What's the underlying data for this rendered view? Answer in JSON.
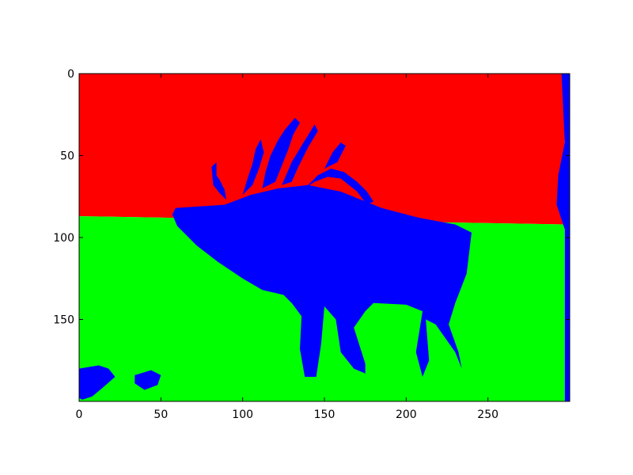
{
  "chart_data": {
    "type": "heatmap",
    "title": "",
    "xlabel": "",
    "ylabel": "",
    "image_width": 300,
    "image_height": 200,
    "xlim": [
      0,
      300
    ],
    "ylim": [
      200,
      0
    ],
    "x_ticks": [
      0,
      50,
      100,
      150,
      200,
      250
    ],
    "y_ticks": [
      0,
      50,
      100,
      150
    ],
    "grid": false,
    "legend": "none",
    "classes": [
      {
        "id": 0,
        "color": "#ff0000"
      },
      {
        "id": 1,
        "color": "#00ff00"
      },
      {
        "id": 2,
        "color": "#0000ff"
      }
    ],
    "regions": [
      {
        "class": 0,
        "polygon": [
          [
            0,
            0
          ],
          [
            297,
            0
          ],
          [
            297,
            92
          ],
          [
            0,
            87
          ]
        ]
      },
      {
        "class": 1,
        "polygon": [
          [
            0,
            87
          ],
          [
            297,
            92
          ],
          [
            297,
            200
          ],
          [
            0,
            200
          ]
        ]
      },
      {
        "class": 2,
        "polygon": [
          [
            59,
            82
          ],
          [
            89,
            80
          ],
          [
            105,
            74
          ],
          [
            122,
            70
          ],
          [
            140,
            68
          ],
          [
            160,
            72
          ],
          [
            185,
            82
          ],
          [
            208,
            88
          ],
          [
            230,
            92
          ],
          [
            240,
            97
          ],
          [
            237,
            122
          ],
          [
            230,
            140
          ],
          [
            226,
            153
          ],
          [
            232,
            170
          ],
          [
            234,
            180
          ],
          [
            230,
            170
          ],
          [
            218,
            153
          ],
          [
            212,
            150
          ],
          [
            214,
            175
          ],
          [
            210,
            185
          ],
          [
            206,
            170
          ],
          [
            210,
            145
          ],
          [
            200,
            141
          ],
          [
            180,
            140
          ],
          [
            175,
            145
          ],
          [
            168,
            155
          ],
          [
            175,
            177
          ],
          [
            175,
            183
          ],
          [
            168,
            180
          ],
          [
            160,
            170
          ],
          [
            157,
            150
          ],
          [
            150,
            142
          ],
          [
            148,
            165
          ],
          [
            145,
            185
          ],
          [
            138,
            185
          ],
          [
            135,
            168
          ],
          [
            136,
            148
          ],
          [
            130,
            140
          ],
          [
            125,
            135
          ],
          [
            112,
            132
          ],
          [
            100,
            125
          ],
          [
            85,
            115
          ],
          [
            72,
            105
          ],
          [
            60,
            93
          ],
          [
            57,
            86
          ]
        ]
      },
      {
        "class": 2,
        "polygon": [
          [
            90,
            77
          ],
          [
            86,
            73
          ],
          [
            82,
            68
          ],
          [
            81,
            57
          ],
          [
            84,
            54
          ],
          [
            84,
            62
          ],
          [
            86,
            65
          ],
          [
            89,
            71
          ]
        ]
      },
      {
        "class": 2,
        "polygon": [
          [
            100,
            74
          ],
          [
            103,
            64
          ],
          [
            106,
            55
          ],
          [
            108,
            46
          ],
          [
            111,
            40
          ],
          [
            113,
            48
          ],
          [
            110,
            58
          ],
          [
            106,
            68
          ]
        ]
      },
      {
        "class": 2,
        "polygon": [
          [
            112,
            70
          ],
          [
            114,
            60
          ],
          [
            117,
            50
          ],
          [
            122,
            40
          ],
          [
            126,
            34
          ],
          [
            132,
            27
          ],
          [
            135,
            30
          ],
          [
            131,
            37
          ],
          [
            128,
            46
          ],
          [
            124,
            56
          ],
          [
            120,
            66
          ]
        ]
      },
      {
        "class": 2,
        "polygon": [
          [
            124,
            68
          ],
          [
            130,
            54
          ],
          [
            136,
            44
          ],
          [
            141,
            36
          ],
          [
            144,
            31
          ],
          [
            146,
            35
          ],
          [
            140,
            45
          ],
          [
            134,
            57
          ],
          [
            130,
            66
          ]
        ]
      },
      {
        "class": 2,
        "polygon": [
          [
            138,
            70
          ],
          [
            146,
            62
          ],
          [
            154,
            58
          ],
          [
            162,
            60
          ],
          [
            170,
            66
          ],
          [
            176,
            72
          ],
          [
            180,
            78
          ],
          [
            176,
            80
          ],
          [
            170,
            72
          ],
          [
            160,
            64
          ],
          [
            152,
            63
          ],
          [
            144,
            66
          ]
        ]
      },
      {
        "class": 2,
        "polygon": [
          [
            150,
            58
          ],
          [
            155,
            48
          ],
          [
            160,
            42
          ],
          [
            163,
            44
          ],
          [
            158,
            54
          ]
        ]
      },
      {
        "class": 2,
        "polygon": [
          [
            295,
            0
          ],
          [
            300,
            0
          ],
          [
            300,
            200
          ],
          [
            297,
            200
          ],
          [
            297,
            95
          ],
          [
            292,
            80
          ],
          [
            293,
            62
          ],
          [
            297,
            42
          ]
        ]
      },
      {
        "class": 2,
        "polygon": [
          [
            0,
            180
          ],
          [
            12,
            178
          ],
          [
            18,
            180
          ],
          [
            22,
            185
          ],
          [
            14,
            192
          ],
          [
            8,
            197
          ],
          [
            2,
            199
          ],
          [
            0,
            198
          ]
        ]
      },
      {
        "class": 2,
        "polygon": [
          [
            34,
            184
          ],
          [
            44,
            181
          ],
          [
            50,
            184
          ],
          [
            48,
            190
          ],
          [
            40,
            193
          ],
          [
            34,
            189
          ]
        ]
      }
    ]
  }
}
